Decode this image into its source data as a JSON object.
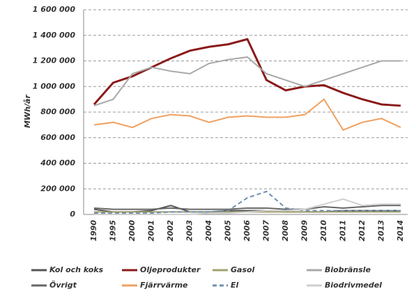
{
  "chart_data": {
    "type": "line",
    "y_label": "MWh/år",
    "categories": [
      "1990",
      "1995",
      "2000",
      "2001",
      "2002",
      "2003",
      "2004",
      "2005",
      "2006",
      "2007",
      "2008",
      "2009",
      "2010",
      "2011",
      "2012",
      "2013",
      "2014"
    ],
    "ylim": [
      0,
      1600000
    ],
    "yticks": [
      0,
      {
        "value": 200000,
        "label": "200 000"
      },
      {
        "value": 400000,
        "label": "400 000"
      },
      {
        "value": 600000,
        "label": "600 000"
      },
      {
        "value": 800000,
        "label": "800 000"
      },
      {
        "value": 1000000,
        "label": "1 000 000"
      },
      {
        "value": 1200000,
        "label": "1 200 000"
      },
      {
        "value": 1400000,
        "label": "1 400 000"
      },
      {
        "value": 1600000,
        "label": "1 600 000"
      }
    ],
    "grid": true,
    "series": [
      {
        "name": "Kol och koks",
        "color": "#555555",
        "values": [
          40000,
          20000,
          20000,
          30000,
          70000,
          20000,
          20000,
          30000,
          30000,
          30000,
          20000,
          20000,
          20000,
          30000,
          30000,
          30000,
          30000
        ]
      },
      {
        "name": "Oljeprodukter",
        "color": "#8b1a1a",
        "values": [
          860000,
          1030000,
          1080000,
          1150000,
          1220000,
          1280000,
          1310000,
          1330000,
          1370000,
          1050000,
          970000,
          1000000,
          1010000,
          950000,
          900000,
          860000,
          850000
        ]
      },
      {
        "name": "Gasol",
        "color": "#a0a070",
        "values": [
          20000,
          20000,
          20000,
          20000,
          20000,
          20000,
          20000,
          20000,
          20000,
          20000,
          20000,
          20000,
          20000,
          20000,
          20000,
          20000,
          20000
        ]
      },
      {
        "name": "Biobränsle",
        "color": "#a8a8a8",
        "values": [
          850000,
          900000,
          1100000,
          1150000,
          1120000,
          1100000,
          1180000,
          1210000,
          1230000,
          1100000,
          1050000,
          1000000,
          1050000,
          1100000,
          1150000,
          1200000,
          1200000
        ]
      },
      {
        "name": "Övrigt",
        "color": "#666666",
        "values": [
          50000,
          40000,
          40000,
          40000,
          50000,
          40000,
          40000,
          40000,
          50000,
          50000,
          40000,
          40000,
          60000,
          50000,
          60000,
          70000,
          70000
        ]
      },
      {
        "name": "Fjärrvärme",
        "color": "#f0a060",
        "values": [
          700000,
          720000,
          680000,
          750000,
          780000,
          770000,
          720000,
          760000,
          770000,
          760000,
          760000,
          780000,
          900000,
          660000,
          720000,
          750000,
          680000
        ]
      },
      {
        "name": "El",
        "color": "#6f8fb0",
        "line_style": "dashed",
        "values": [
          10000,
          10000,
          10000,
          10000,
          20000,
          20000,
          20000,
          30000,
          130000,
          180000,
          50000,
          30000,
          30000,
          30000,
          30000,
          30000,
          30000
        ]
      },
      {
        "name": "Biodrivmedel",
        "color": "#cfcfcf",
        "values": [
          0,
          0,
          0,
          0,
          0,
          0,
          10000,
          10000,
          20000,
          30000,
          30000,
          40000,
          80000,
          120000,
          70000,
          80000,
          80000
        ]
      }
    ]
  }
}
